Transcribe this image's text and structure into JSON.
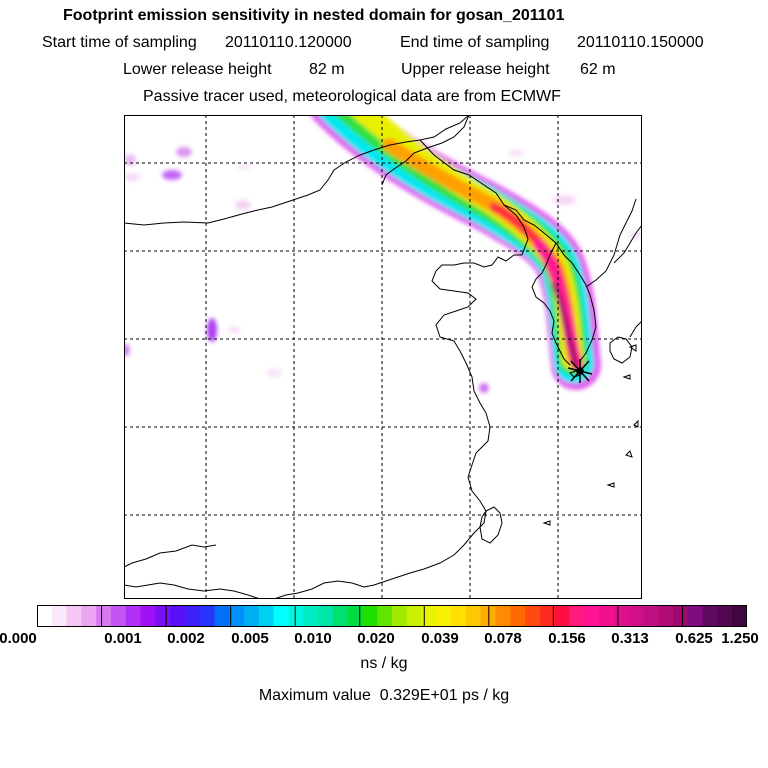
{
  "header": {
    "title": "Footprint emission sensitivity in nested domain for gosan_201101",
    "start_label": "Start time of sampling",
    "start_value": "20110110.120000",
    "end_label": "End time of sampling",
    "end_value": "20110110.150000",
    "lower_label": "Lower release height",
    "lower_value": "82 m",
    "upper_label": "Upper release height",
    "upper_value": "62 m",
    "note": "Passive tracer used, meteorological data are from ECMWF"
  },
  "colorbar": {
    "ticks": [
      "0.000",
      "0.001",
      "0.002",
      "0.005",
      "0.010",
      "0.020",
      "0.039",
      "0.078",
      "0.156",
      "0.313",
      "0.625",
      "1.250"
    ],
    "colors": [
      "#ffffff",
      "#fbe8fb",
      "#f5c8f5",
      "#eca6f0",
      "#d77af0",
      "#c455f2",
      "#b030f5",
      "#a010f5",
      "#7a10f5",
      "#5a10f5",
      "#4020f8",
      "#2a35fb",
      "#0070fa",
      "#0090f8",
      "#00b0f5",
      "#00d0f2",
      "#00ffff",
      "#00f5e0",
      "#00ecc5",
      "#00e6a8",
      "#00e070",
      "#00dd40",
      "#20e000",
      "#60e400",
      "#a0ea00",
      "#c8f000",
      "#e8f500",
      "#f8f000",
      "#ffe000",
      "#ffc800",
      "#ffaa00",
      "#ff8c00",
      "#ff6a00",
      "#ff4a10",
      "#ff2a20",
      "#ff1040",
      "#ff1a80",
      "#ff1495",
      "#f01090",
      "#e0108a",
      "#d01088",
      "#c01080",
      "#b00c78",
      "#a0086e",
      "#800c80",
      "#600a60",
      "#500850",
      "#400640"
    ],
    "units": "ns / kg",
    "max_label": "Maximum value",
    "max_value": "0.329E+01 ps / kg"
  },
  "map": {
    "receptor": "Gosan",
    "plume_colors": {
      "edge": "#e060f0",
      "cyan": "#00e8f0",
      "green": "#30e040",
      "yellow": "#e8f000",
      "orange": "#ffa000",
      "red": "#ff2a40",
      "magenta": "#ff1a90"
    }
  }
}
